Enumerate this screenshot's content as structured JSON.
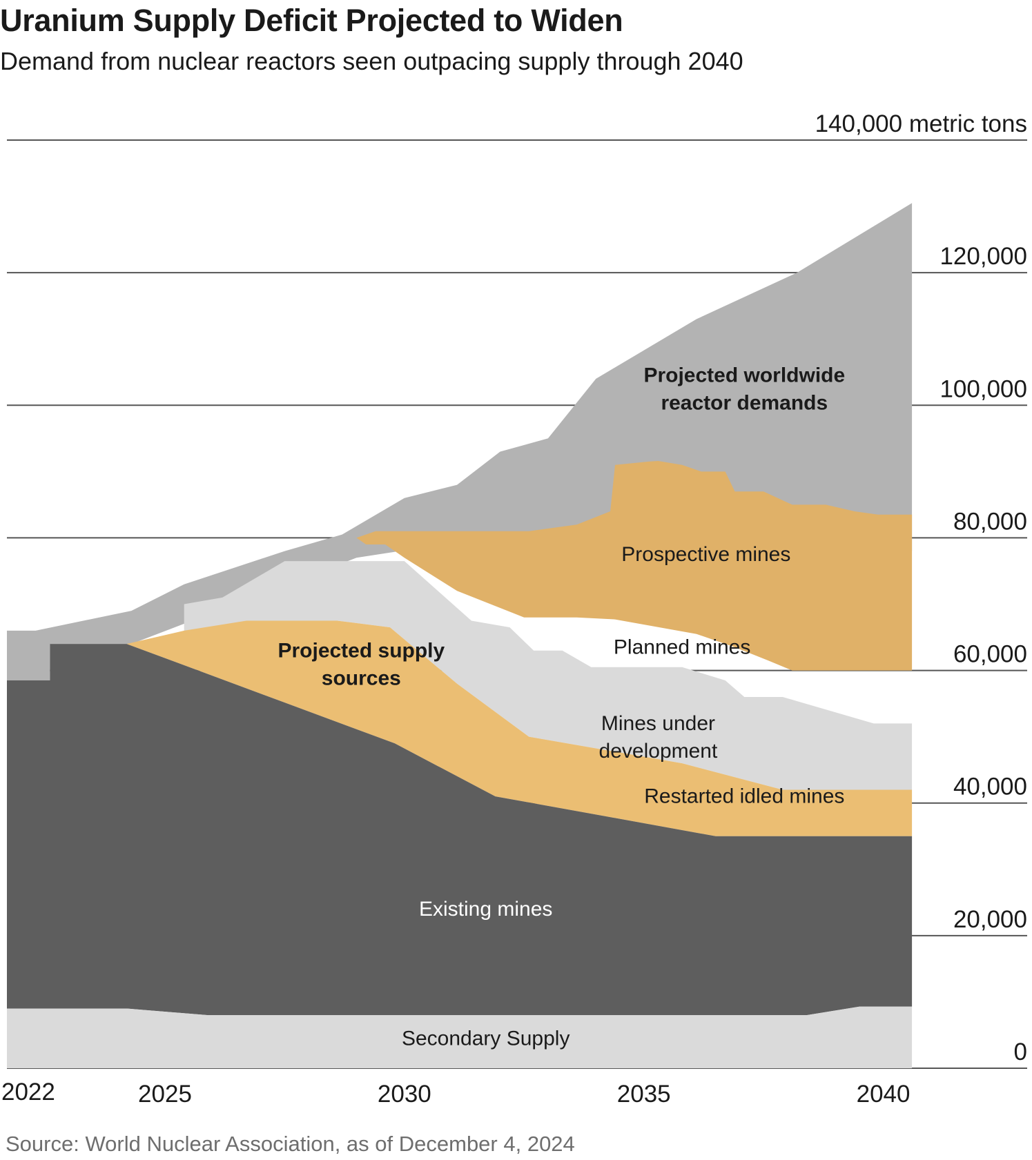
{
  "header": {
    "title": "Uranium Supply Deficit Projected to Widen",
    "subtitle": "Demand from nuclear reactors seen outpacing supply through 2040",
    "source": "Source: World Nuclear Association, as of December 4, 2024"
  },
  "chart_data": {
    "type": "area",
    "title": "Uranium Supply Deficit Projected to Widen",
    "subtitle": "Demand from nuclear reactors seen outpacing supply through 2040",
    "unit": "metric tons",
    "ylim": [
      0,
      140000
    ],
    "y_ticks": [
      {
        "value": 0,
        "label": "0"
      },
      {
        "value": 20000,
        "label": "20,000"
      },
      {
        "value": 40000,
        "label": "40,000"
      },
      {
        "value": 60000,
        "label": "60,000"
      },
      {
        "value": 80000,
        "label": "80,000"
      },
      {
        "value": 100000,
        "label": "100,000"
      },
      {
        "value": 120000,
        "label": "120,000"
      },
      {
        "value": 140000,
        "label": "140,000 metric tons"
      }
    ],
    "x_ticks": [
      {
        "value": 2022,
        "label": "2022"
      },
      {
        "value": 2025,
        "label": "2025"
      },
      {
        "value": 2030,
        "label": "2030"
      },
      {
        "value": 2035,
        "label": "2035"
      },
      {
        "value": 2040,
        "label": "2040"
      }
    ],
    "xlim": [
      2021.9,
      2041
    ],
    "grid": true,
    "layers": [
      {
        "name": "Projected worldwide reactor demands",
        "color": "#b3b3b3",
        "upper": [
          [
            2021.9,
            66000
          ],
          [
            2022.5,
            66000
          ],
          [
            2024.5,
            69000
          ],
          [
            2025.6,
            73000
          ],
          [
            2027.7,
            78000
          ],
          [
            2028.9,
            80500
          ],
          [
            2030.2,
            86000
          ],
          [
            2031.3,
            88000
          ],
          [
            2032.2,
            93000
          ],
          [
            2033.2,
            95000
          ],
          [
            2034.2,
            104000
          ],
          [
            2036.3,
            113000
          ],
          [
            2038.4,
            120000
          ],
          [
            2040.8,
            130500
          ]
        ],
        "lower": [
          [
            2021.9,
            58500
          ],
          [
            2022.8,
            58500
          ],
          [
            2022.8,
            64000
          ],
          [
            2024.5,
            64000
          ],
          [
            2029.2,
            77000
          ],
          [
            2030.1,
            78000
          ],
          [
            2031.5,
            78500
          ],
          [
            2032.8,
            78500
          ],
          [
            2033.8,
            79500
          ],
          [
            2034.5,
            82000
          ],
          [
            2034.6,
            86000
          ],
          [
            2035.3,
            85700
          ],
          [
            2035.5,
            85500
          ],
          [
            2036.0,
            85000
          ],
          [
            2036.4,
            84000
          ],
          [
            2036.9,
            84500
          ],
          [
            2037.1,
            81500
          ],
          [
            2037.7,
            81000
          ],
          [
            2038.3,
            79000
          ],
          [
            2039.0,
            79000
          ],
          [
            2039.6,
            78500
          ],
          [
            2040.1,
            78000
          ],
          [
            2040.8,
            78000
          ]
        ]
      },
      {
        "name": "Prospective mines",
        "color": "#e0b168",
        "upper": [
          [
            2029.2,
            80000
          ],
          [
            2029.6,
            81000
          ],
          [
            2032.8,
            81000
          ],
          [
            2033.8,
            82000
          ],
          [
            2034.5,
            84000
          ],
          [
            2034.6,
            91000
          ],
          [
            2035.3,
            91500
          ],
          [
            2035.5,
            91600
          ],
          [
            2036.0,
            91000
          ],
          [
            2036.4,
            90000
          ],
          [
            2036.9,
            90000
          ],
          [
            2037.1,
            87000
          ],
          [
            2037.7,
            87000
          ],
          [
            2038.3,
            85000
          ],
          [
            2039.0,
            85000
          ],
          [
            2039.6,
            84000
          ],
          [
            2040.1,
            83500
          ],
          [
            2040.8,
            83500
          ]
        ],
        "lower": [
          [
            2029.2,
            80000
          ],
          [
            2029.4,
            79000
          ],
          [
            2029.8,
            79000
          ],
          [
            2030.2,
            77000
          ],
          [
            2031.3,
            72000
          ],
          [
            2032.7,
            68000
          ],
          [
            2033.8,
            68000
          ],
          [
            2034.6,
            67700
          ],
          [
            2036.3,
            65500
          ],
          [
            2037.1,
            63500
          ],
          [
            2037.8,
            61500
          ],
          [
            2038.3,
            60000
          ],
          [
            2039.4,
            60000
          ],
          [
            2040.8,
            60000
          ]
        ]
      },
      {
        "name": "Mines under development",
        "color": "#dadada",
        "upper": [
          [
            2025.6,
            70000
          ],
          [
            2026.4,
            71000
          ],
          [
            2027.7,
            76500
          ],
          [
            2029.9,
            76500
          ],
          [
            2030.2,
            76500
          ],
          [
            2031.6,
            67500
          ],
          [
            2032.4,
            66500
          ],
          [
            2032.9,
            63000
          ],
          [
            2033.5,
            63000
          ],
          [
            2034.1,
            60500
          ],
          [
            2036.0,
            60500
          ],
          [
            2036.9,
            58500
          ],
          [
            2037.3,
            56000
          ],
          [
            2038.1,
            56000
          ],
          [
            2040.0,
            52000
          ],
          [
            2040.8,
            52000
          ]
        ],
        "lower": [
          [
            2025.6,
            65000
          ],
          [
            2026.9,
            67500
          ],
          [
            2028.8,
            67500
          ],
          [
            2029.9,
            66500
          ],
          [
            2031.3,
            58000
          ],
          [
            2032.8,
            50000
          ],
          [
            2036.0,
            46000
          ],
          [
            2038.1,
            42000
          ],
          [
            2040.8,
            42000
          ]
        ]
      },
      {
        "name": "Restarted idled mines",
        "color": "#ebbe73",
        "upper": [
          [
            2024.4,
            64000
          ],
          [
            2025.6,
            66000
          ],
          [
            2026.9,
            67500
          ],
          [
            2028.8,
            67500
          ],
          [
            2029.9,
            66500
          ],
          [
            2031.3,
            58000
          ],
          [
            2032.8,
            50000
          ],
          [
            2036.0,
            46000
          ],
          [
            2038.1,
            42000
          ],
          [
            2040.8,
            42000
          ]
        ],
        "lower": [
          [
            2024.4,
            64000
          ],
          [
            2030.0,
            49000
          ],
          [
            2032.1,
            41000
          ],
          [
            2034.4,
            38000
          ],
          [
            2036.7,
            35000
          ],
          [
            2038.4,
            35000
          ],
          [
            2040.8,
            35000
          ]
        ]
      },
      {
        "name": "Existing mines",
        "color": "#5e5e5e",
        "upper": [
          [
            2021.9,
            58500
          ],
          [
            2022.8,
            58500
          ],
          [
            2022.8,
            64000
          ],
          [
            2024.4,
            64000
          ],
          [
            2030.0,
            49000
          ],
          [
            2032.1,
            41000
          ],
          [
            2034.4,
            38000
          ],
          [
            2036.7,
            35000
          ],
          [
            2038.4,
            35000
          ],
          [
            2040.8,
            35000
          ]
        ],
        "lower": [
          [
            2021.9,
            9000
          ],
          [
            2024.4,
            9000
          ],
          [
            2026.1,
            8000
          ],
          [
            2038.6,
            8000
          ],
          [
            2039.7,
            9300
          ],
          [
            2040.8,
            9300
          ]
        ]
      },
      {
        "name": "Secondary Supply",
        "color": "#dadada",
        "upper": [
          [
            2021.9,
            9000
          ],
          [
            2024.4,
            9000
          ],
          [
            2026.1,
            8000
          ],
          [
            2038.6,
            8000
          ],
          [
            2039.7,
            9300
          ],
          [
            2040.8,
            9300
          ]
        ],
        "lower": [
          [
            2021.9,
            0
          ],
          [
            2040.8,
            0
          ]
        ]
      }
    ],
    "annotations": [
      {
        "lines": [
          "Projected worldwide",
          "reactor demands"
        ],
        "x": 2037.3,
        "y": 103500,
        "style": "bold"
      },
      {
        "lines": [
          "Prospective mines"
        ],
        "x": 2036.5,
        "y": 76500,
        "style": "normal"
      },
      {
        "lines": [
          "Projected supply",
          "sources"
        ],
        "x": 2029.3,
        "y": 62000,
        "style": "bold"
      },
      {
        "lines": [
          "Planned mines"
        ],
        "x": 2036.0,
        "y": 62500,
        "style": "normal"
      },
      {
        "lines": [
          "Mines under",
          "development"
        ],
        "x": 2035.5,
        "y": 51000,
        "style": "normal"
      },
      {
        "lines": [
          "Restarted idled mines"
        ],
        "x": 2037.3,
        "y": 40000,
        "style": "normal"
      },
      {
        "lines": [
          "Existing mines"
        ],
        "x": 2031.9,
        "y": 23000,
        "style": "white"
      },
      {
        "lines": [
          "Secondary Supply"
        ],
        "x": 2031.9,
        "y": 3500,
        "style": "normal"
      }
    ]
  }
}
